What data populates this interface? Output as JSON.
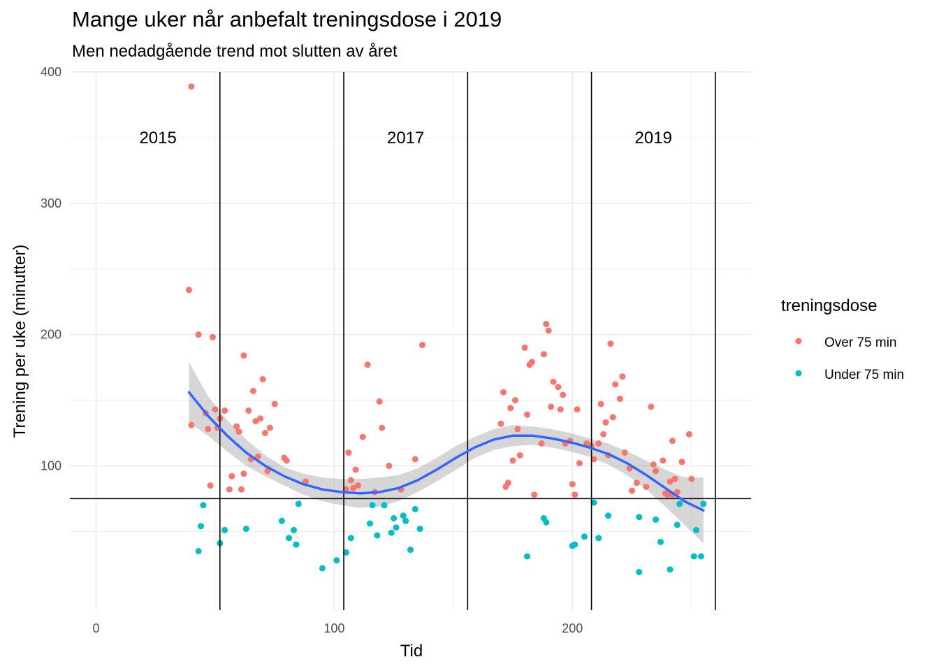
{
  "chart_data": {
    "type": "scatter",
    "title": "Mange uker når anbefalt treningsdose i 2019",
    "subtitle": "Men nedadgående trend mot slutten av året",
    "xlabel": "Tid",
    "ylabel": "Trening per uke (minutter)",
    "xlim": [
      -11,
      275
    ],
    "ylim": [
      -10,
      400
    ],
    "x_ticks": [
      0,
      100,
      200
    ],
    "y_ticks": [
      100,
      200,
      300,
      400
    ],
    "grid": true,
    "hline": 75,
    "vlines": [
      52,
      104,
      156,
      208,
      260
    ],
    "year_labels": [
      {
        "text": "2015",
        "x": 26,
        "y": 350
      },
      {
        "text": "2017",
        "x": 130,
        "y": 350
      },
      {
        "text": "2019",
        "x": 234,
        "y": 350
      }
    ],
    "legend": {
      "title": "treningsdose",
      "position": "right",
      "items": [
        {
          "label": "Over 75 min",
          "color": "#F8766D"
        },
        {
          "label": "Under 75 min",
          "color": "#00BFC4"
        }
      ]
    },
    "series": [
      {
        "name": "Over 75 min",
        "color": "#F8766D",
        "points": [
          [
            40,
            389
          ],
          [
            39,
            234
          ],
          [
            43,
            200
          ],
          [
            49,
            198
          ],
          [
            40,
            131
          ],
          [
            46,
            140
          ],
          [
            47,
            128
          ],
          [
            50,
            143
          ],
          [
            51,
            129
          ],
          [
            52,
            136
          ],
          [
            54,
            142
          ],
          [
            48,
            85
          ],
          [
            57,
            92
          ],
          [
            56,
            82
          ],
          [
            59,
            130
          ],
          [
            60,
            126
          ],
          [
            61,
            82
          ],
          [
            62,
            94
          ],
          [
            62,
            184
          ],
          [
            64,
            142
          ],
          [
            65,
            105
          ],
          [
            66,
            157
          ],
          [
            67,
            134
          ],
          [
            68,
            107
          ],
          [
            69,
            136
          ],
          [
            70,
            166
          ],
          [
            71,
            125
          ],
          [
            72,
            96
          ],
          [
            73,
            129
          ],
          [
            75,
            147
          ],
          [
            79,
            106
          ],
          [
            80,
            104
          ],
          [
            88,
            88
          ],
          [
            105,
            82
          ],
          [
            106,
            110
          ],
          [
            107,
            89
          ],
          [
            108,
            83
          ],
          [
            109,
            97
          ],
          [
            110,
            85
          ],
          [
            112,
            122
          ],
          [
            114,
            177
          ],
          [
            117,
            80
          ],
          [
            119,
            149
          ],
          [
            120,
            129
          ],
          [
            123,
            100
          ],
          [
            128,
            82
          ],
          [
            134,
            105
          ],
          [
            137,
            192
          ],
          [
            170,
            132
          ],
          [
            171,
            156
          ],
          [
            172,
            84
          ],
          [
            173,
            87
          ],
          [
            174,
            144
          ],
          [
            175,
            104
          ],
          [
            176,
            150
          ],
          [
            177,
            128
          ],
          [
            178,
            108
          ],
          [
            180,
            190
          ],
          [
            181,
            139
          ],
          [
            182,
            177
          ],
          [
            183,
            179
          ],
          [
            184,
            78
          ],
          [
            187,
            117
          ],
          [
            188,
            185
          ],
          [
            189,
            208
          ],
          [
            190,
            203
          ],
          [
            191,
            145
          ],
          [
            192,
            164
          ],
          [
            194,
            160
          ],
          [
            195,
            143
          ],
          [
            196,
            154
          ],
          [
            197,
            117
          ],
          [
            199,
            119
          ],
          [
            200,
            86
          ],
          [
            201,
            78
          ],
          [
            202,
            143
          ],
          [
            203,
            102
          ],
          [
            206,
            117
          ],
          [
            208,
            115
          ],
          [
            209,
            105
          ],
          [
            211,
            117
          ],
          [
            212,
            147
          ],
          [
            213,
            124
          ],
          [
            214,
            133
          ],
          [
            215,
            108
          ],
          [
            216,
            193
          ],
          [
            217,
            137
          ],
          [
            218,
            162
          ],
          [
            220,
            151
          ],
          [
            221,
            168
          ],
          [
            222,
            110
          ],
          [
            224,
            98
          ],
          [
            225,
            81
          ],
          [
            227,
            87
          ],
          [
            231,
            84
          ],
          [
            233,
            145
          ],
          [
            234,
            101
          ],
          [
            235,
            96
          ],
          [
            238,
            104
          ],
          [
            239,
            79
          ],
          [
            240,
            78
          ],
          [
            241,
            88
          ],
          [
            242,
            119
          ],
          [
            243,
            90
          ],
          [
            244,
            80
          ],
          [
            246,
            103
          ],
          [
            249,
            124
          ],
          [
            250,
            90
          ],
          [
            242,
            78
          ]
        ]
      },
      {
        "name": "Under 75 min",
        "color": "#00BFC4",
        "points": [
          [
            43,
            35
          ],
          [
            45,
            70
          ],
          [
            44,
            54
          ],
          [
            52,
            41
          ],
          [
            54,
            51
          ],
          [
            63,
            52
          ],
          [
            78,
            58
          ],
          [
            81,
            45
          ],
          [
            83,
            51
          ],
          [
            84,
            40
          ],
          [
            85,
            71
          ],
          [
            95,
            22
          ],
          [
            101,
            28
          ],
          [
            105,
            34
          ],
          [
            107,
            45
          ],
          [
            116,
            70
          ],
          [
            115,
            56
          ],
          [
            118,
            47
          ],
          [
            121,
            70
          ],
          [
            124,
            49
          ],
          [
            125,
            60
          ],
          [
            126,
            53
          ],
          [
            129,
            62
          ],
          [
            130,
            58
          ],
          [
            132,
            36
          ],
          [
            134,
            67
          ],
          [
            136,
            52
          ],
          [
            181,
            31
          ],
          [
            188,
            60
          ],
          [
            189,
            57
          ],
          [
            200,
            39
          ],
          [
            201,
            40
          ],
          [
            205,
            46
          ],
          [
            209,
            72
          ],
          [
            211,
            45
          ],
          [
            215,
            62
          ],
          [
            228,
            19
          ],
          [
            228,
            61
          ],
          [
            235,
            59
          ],
          [
            237,
            42
          ],
          [
            241,
            21
          ],
          [
            244,
            55
          ],
          [
            245,
            71
          ],
          [
            251,
            31
          ],
          [
            252,
            51
          ],
          [
            254,
            31
          ],
          [
            255,
            71
          ]
        ]
      }
    ],
    "smooth": {
      "color": "#3366FF",
      "band_color": "#999999",
      "x": [
        39,
        47,
        55,
        63,
        71,
        79,
        87,
        95,
        103,
        111,
        119,
        127,
        135,
        143,
        151,
        159,
        167,
        175,
        183,
        191,
        199,
        207,
        215,
        223,
        231,
        239,
        247,
        255
      ],
      "y": [
        156,
        138,
        123,
        110,
        100,
        92,
        86,
        82,
        80,
        79,
        80,
        83,
        89,
        97,
        106,
        114,
        120,
        123,
        123,
        121,
        118,
        114,
        109,
        102,
        93,
        83,
        73,
        66
      ],
      "lower": [
        133,
        123,
        111,
        100,
        92,
        85,
        78,
        73,
        70,
        68,
        69,
        73,
        80,
        88,
        97,
        106,
        112,
        115,
        116,
        114,
        111,
        107,
        101,
        93,
        82,
        69,
        55,
        41
      ],
      "upper": [
        179,
        153,
        135,
        120,
        108,
        99,
        94,
        91,
        90,
        90,
        91,
        93,
        98,
        106,
        115,
        122,
        128,
        131,
        130,
        128,
        125,
        121,
        117,
        111,
        104,
        97,
        91,
        91
      ]
    }
  }
}
